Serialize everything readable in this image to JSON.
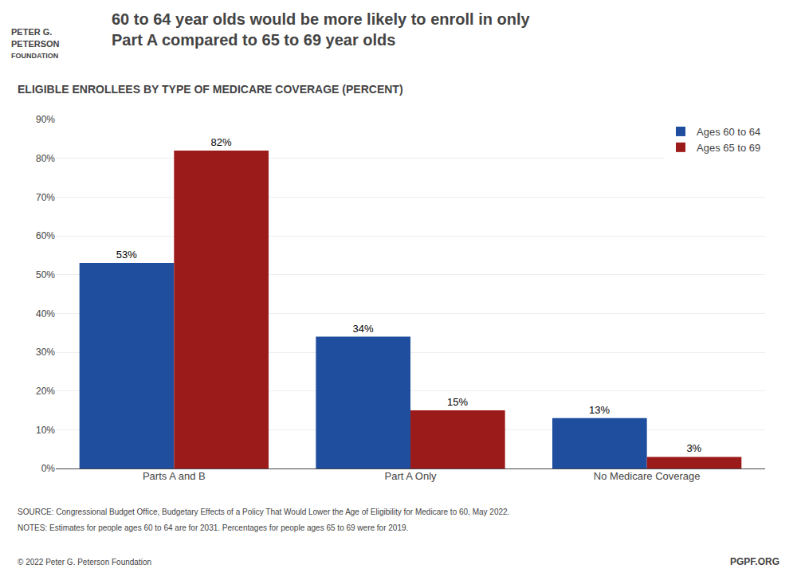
{
  "chart_data": {
    "type": "bar",
    "title": "60 to 64 year olds would be more likely to enroll in only\nPart A compared to 65 to 69 year olds",
    "subtitle": "ELIGIBLE ENROLLEES BY TYPE OF MEDICARE COVERAGE (PERCENT)",
    "categories": [
      "Parts A and B",
      "Part A Only",
      "No Medicare Coverage"
    ],
    "series": [
      {
        "name": "Ages 60 to 64",
        "color": "#1f4e9e",
        "values": [
          53,
          34,
          13
        ],
        "value_labels": [
          "53%",
          "34%",
          "13%"
        ]
      },
      {
        "name": "Ages 65 to 69",
        "color": "#9b1b1b",
        "values": [
          82,
          15,
          3
        ],
        "value_labels": [
          "82%",
          "15%",
          "3%"
        ]
      }
    ],
    "ylim": [
      0,
      90
    ],
    "yticks": [
      {
        "value": 0,
        "label": "0%"
      },
      {
        "value": 10,
        "label": "10%"
      },
      {
        "value": 20,
        "label": "20%"
      },
      {
        "value": 30,
        "label": "30%"
      },
      {
        "value": 40,
        "label": "40%"
      },
      {
        "value": 50,
        "label": "50%"
      },
      {
        "value": 60,
        "label": "60%"
      },
      {
        "value": 70,
        "label": "70%"
      },
      {
        "value": 80,
        "label": "80%"
      },
      {
        "value": 90,
        "label": "90%"
      }
    ],
    "grid": true,
    "legend": "upper right",
    "data_labels": true,
    "annotations": [
      "PETER G.",
      "PETERSON",
      "FOUNDATION",
      "SOURCE: Congressional Budget Office, Budgetary Effects of a Policy That Would Lower the Age of Eligibility for Medicare to 60, May 2022.",
      "NOTES: Estimates for people ages 60 to 64 are for 2031. Percentages for people ages 65 to 69 were for 2019.",
      "© 2022 Peter G. Peterson Foundation",
      "PGPF.ORG"
    ]
  }
}
